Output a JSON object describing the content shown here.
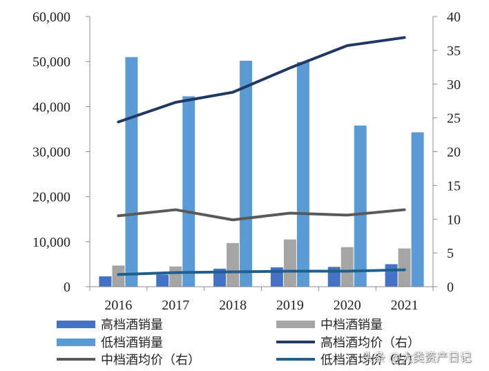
{
  "chart_data": {
    "type": "bar+line",
    "categories": [
      "2016",
      "2017",
      "2018",
      "2019",
      "2020",
      "2021"
    ],
    "left_axis": {
      "ylim": [
        0,
        60000
      ],
      "ticks": [
        "0",
        "10,000",
        "20,000",
        "30,000",
        "40,000",
        "50,000",
        "60,000"
      ]
    },
    "right_axis": {
      "ylim": [
        0,
        40
      ],
      "ticks": [
        "0",
        "5",
        "10",
        "15",
        "20",
        "25",
        "30",
        "35",
        "40"
      ]
    },
    "bar_series": [
      {
        "name": "高档酒销量",
        "color": "#4472C4",
        "values": [
          2300,
          2700,
          4000,
          4300,
          4400,
          5000
        ]
      },
      {
        "name": "中档酒销量",
        "color": "#A5A5A5",
        "values": [
          4700,
          4500,
          9700,
          10500,
          8800,
          8500
        ]
      },
      {
        "name": "低档酒销量",
        "color": "#5B9BD5",
        "values": [
          51000,
          42300,
          50200,
          49900,
          35800,
          34300
        ]
      }
    ],
    "line_series": [
      {
        "name": "高档酒均价（右）",
        "color": "#203864",
        "values": [
          24.4,
          27.3,
          28.8,
          32.4,
          35.7,
          36.9
        ]
      },
      {
        "name": "中档酒均价（右）",
        "color": "#595959",
        "values": [
          10.5,
          11.4,
          9.9,
          10.9,
          10.6,
          11.4
        ]
      },
      {
        "name": "低档酒均价（右）",
        "color": "#1F5F8B",
        "values": [
          1.8,
          2.1,
          2.2,
          2.3,
          2.3,
          2.5
        ]
      }
    ]
  },
  "watermark": "头条 @大类资产日记"
}
